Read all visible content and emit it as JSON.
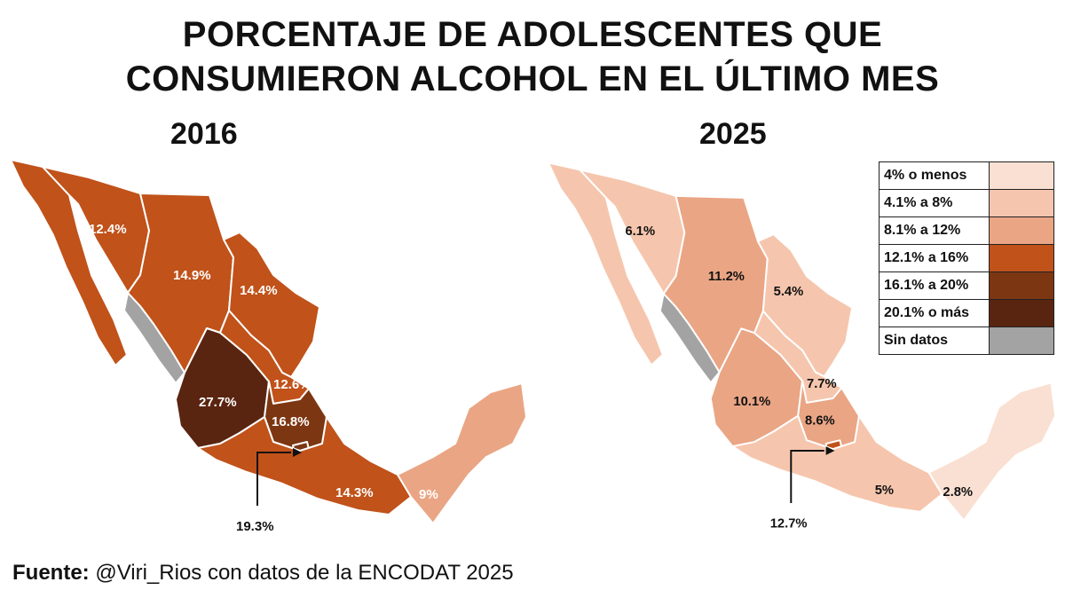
{
  "title": {
    "line1": "PORCENTAJE DE ADOLESCENTES QUE",
    "line2": "CONSUMIERON ALCOHOL EN EL ÚLTIMO MES"
  },
  "maps": [
    {
      "year": "2016",
      "regions": [
        {
          "name": "noroccidental",
          "value": "12.4%",
          "color": "#c0521a"
        },
        {
          "name": "norcentral",
          "value": "14.9%",
          "color": "#c0521a"
        },
        {
          "name": "nororiental",
          "value": "14.4%",
          "color": "#c0521a"
        },
        {
          "name": "occidental",
          "value": "27.7%",
          "color": "#5a2510"
        },
        {
          "name": "centro-norte",
          "value": "12.6%",
          "color": "#c0521a"
        },
        {
          "name": "centro",
          "value": "16.8%",
          "color": "#7d3612"
        },
        {
          "name": "ciudad-de-mexico",
          "value": "19.3%",
          "color": "#7d3612"
        },
        {
          "name": "centro-sur",
          "value": "14.3%",
          "color": "#c0521a"
        },
        {
          "name": "sur",
          "value": "9%",
          "color": "#eaa584"
        },
        {
          "name": "sin-datos",
          "value": "",
          "color": "#a3a3a3"
        }
      ]
    },
    {
      "year": "2025",
      "regions": [
        {
          "name": "noroccidental",
          "value": "6.1%",
          "color": "#f5c6ad"
        },
        {
          "name": "norcentral",
          "value": "11.2%",
          "color": "#eaa584"
        },
        {
          "name": "nororiental",
          "value": "5.4%",
          "color": "#f5c6ad"
        },
        {
          "name": "occidental",
          "value": "10.1%",
          "color": "#eaa584"
        },
        {
          "name": "centro-norte",
          "value": "7.7%",
          "color": "#f5c6ad"
        },
        {
          "name": "centro",
          "value": "8.6%",
          "color": "#eaa584"
        },
        {
          "name": "ciudad-de-mexico",
          "value": "12.7%",
          "color": "#c0521a"
        },
        {
          "name": "centro-sur",
          "value": "5%",
          "color": "#f5c6ad"
        },
        {
          "name": "sur",
          "value": "2.8%",
          "color": "#f9e0d2"
        },
        {
          "name": "sin-datos",
          "value": "",
          "color": "#a3a3a3"
        }
      ]
    }
  ],
  "legend": [
    {
      "label": "4% o menos",
      "color": "#f9e0d2"
    },
    {
      "label": "4.1% a 8%",
      "color": "#f5c6ad"
    },
    {
      "label": "8.1% a 12%",
      "color": "#eaa584"
    },
    {
      "label": "12.1% a 16%",
      "color": "#c0521a"
    },
    {
      "label": "16.1% a 20%",
      "color": "#7d3612"
    },
    {
      "label": "20.1% o más",
      "color": "#5a2510"
    },
    {
      "label": "Sin datos",
      "color": "#a3a3a3"
    }
  ],
  "source": {
    "prefix": "Fuente:",
    "text": " @Viri_Rios con datos de la ENCODAT 2025"
  }
}
